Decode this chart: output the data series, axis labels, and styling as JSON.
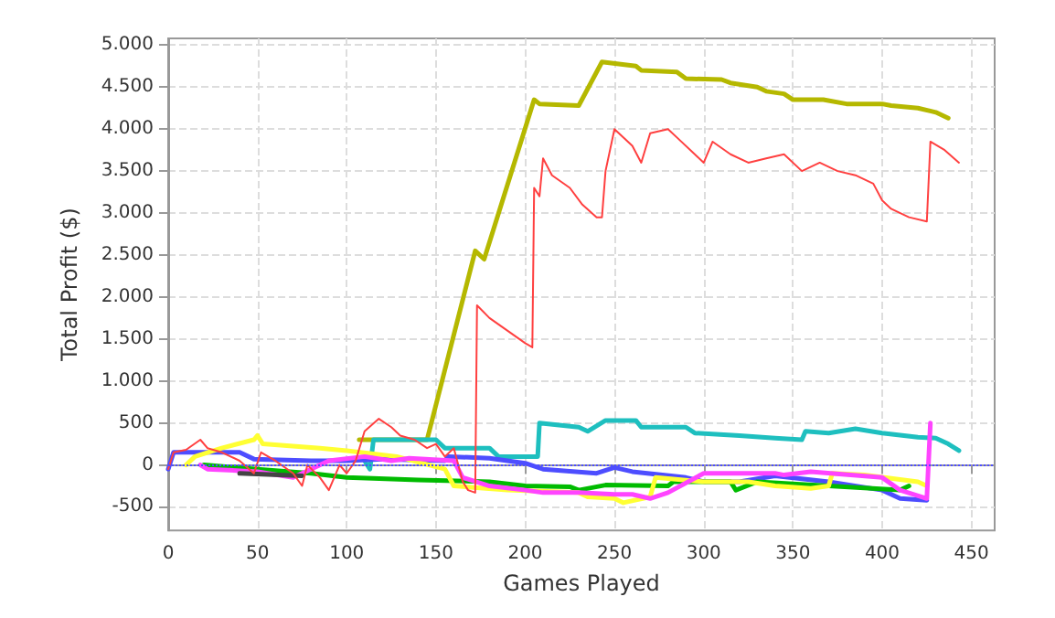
{
  "chart_data": {
    "type": "line",
    "xlabel": "Games Played",
    "ylabel": "Total Profit ($)",
    "xlim": [
      0,
      463
    ],
    "ylim": [
      -780,
      5080
    ],
    "xticks": [
      0,
      50,
      100,
      150,
      200,
      250,
      300,
      350,
      400,
      450
    ],
    "yticks": [
      {
        "value": -500,
        "label": "-500"
      },
      0,
      500,
      {
        "value": 1000,
        "label": "1.000"
      },
      {
        "value": 1500,
        "label": "1.500"
      },
      {
        "value": 2000,
        "label": "2.000"
      },
      {
        "value": 2500,
        "label": "2.500"
      },
      {
        "value": 3000,
        "label": "3.000"
      },
      {
        "value": 3500,
        "label": "3.500"
      },
      {
        "value": 4000,
        "label": "4.000"
      },
      {
        "value": 4500,
        "label": "4.500"
      },
      {
        "value": 5000,
        "label": "5.000"
      }
    ],
    "grid": true,
    "marker": "none",
    "line_style": "solid",
    "ref_lines": [
      {
        "axis": "y",
        "value": 0,
        "color": "#4d4dff",
        "line_style": "dotted"
      }
    ],
    "series": [
      {
        "color": "#b5b800",
        "x": [
          107,
          145,
          172,
          177,
          205,
          208,
          230,
          243,
          262,
          265,
          285,
          290,
          310,
          315,
          330,
          335,
          345,
          350,
          367,
          380,
          400,
          405,
          420,
          430,
          437
        ],
        "values": [
          300,
          300,
          2550,
          2450,
          4350,
          4300,
          4280,
          4800,
          4750,
          4700,
          4680,
          4600,
          4590,
          4550,
          4500,
          4450,
          4420,
          4350,
          4350,
          4300,
          4300,
          4280,
          4250,
          4200,
          4130
        ]
      },
      {
        "color": "#ff4040",
        "x": [
          0,
          3,
          10,
          18,
          22,
          30,
          40,
          48,
          52,
          60,
          70,
          75,
          78,
          85,
          90,
          96,
          100,
          105,
          110,
          118,
          125,
          130,
          138,
          145,
          150,
          155,
          160,
          165,
          168,
          172,
          173,
          180,
          190,
          200,
          204,
          205,
          208,
          210,
          215,
          225,
          232,
          240,
          243,
          245,
          250,
          260,
          265,
          270,
          280,
          285,
          295,
          300,
          305,
          315,
          325,
          335,
          345,
          355,
          365,
          375,
          385,
          395,
          400,
          405,
          415,
          425,
          427,
          435,
          443
        ],
        "values": [
          -50,
          150,
          180,
          300,
          200,
          150,
          50,
          -100,
          150,
          50,
          -100,
          -250,
          0,
          -150,
          -300,
          0,
          -100,
          50,
          400,
          550,
          450,
          350,
          300,
          200,
          250,
          100,
          200,
          -200,
          -300,
          -330,
          1900,
          1750,
          1600,
          1450,
          1400,
          3300,
          3200,
          3650,
          3450,
          3300,
          3100,
          2950,
          2950,
          3500,
          4000,
          3800,
          3600,
          3950,
          4000,
          3900,
          3700,
          3600,
          3850,
          3700,
          3600,
          3650,
          3700,
          3500,
          3600,
          3500,
          3450,
          3350,
          3150,
          3050,
          2950,
          2900,
          3850,
          3750,
          3600
        ]
      },
      {
        "color": "#1ebfbf",
        "x": [
          110,
          113,
          115,
          150,
          155,
          180,
          185,
          207,
          208,
          230,
          235,
          245,
          262,
          265,
          290,
          295,
          320,
          340,
          355,
          357,
          370,
          385,
          400,
          420,
          430,
          437,
          443
        ],
        "values": [
          50,
          -50,
          300,
          300,
          200,
          200,
          100,
          100,
          500,
          450,
          400,
          530,
          530,
          450,
          450,
          380,
          350,
          320,
          300,
          400,
          380,
          430,
          380,
          330,
          320,
          250,
          170
        ]
      },
      {
        "color": "#4d4dff",
        "x": [
          0,
          3,
          7,
          40,
          48,
          80,
          100,
          120,
          155,
          157,
          180,
          200,
          210,
          240,
          250,
          260,
          290,
          300,
          320,
          340,
          370,
          400,
          410,
          425
        ],
        "values": [
          -50,
          150,
          150,
          150,
          70,
          50,
          50,
          70,
          50,
          100,
          80,
          20,
          -50,
          -100,
          -30,
          -80,
          -150,
          -200,
          -200,
          -130,
          -200,
          -300,
          -400,
          -420
        ]
      },
      {
        "color": "#00bb00",
        "x": [
          20,
          50,
          80,
          100,
          140,
          180,
          200,
          225,
          230,
          245,
          280,
          283,
          315,
          318,
          330,
          370,
          410,
          415
        ],
        "values": [
          0,
          -50,
          -100,
          -150,
          -180,
          -200,
          -250,
          -260,
          -300,
          -240,
          -250,
          -200,
          -200,
          -300,
          -200,
          -250,
          -300,
          -250
        ]
      },
      {
        "color": "#ffff33",
        "x": [
          10,
          15,
          30,
          48,
          50,
          53,
          85,
          100,
          128,
          155,
          160,
          190,
          230,
          235,
          250,
          255,
          270,
          273,
          300,
          325,
          340,
          360,
          370,
          372,
          390,
          420,
          425
        ],
        "values": [
          0,
          100,
          200,
          300,
          350,
          250,
          200,
          170,
          100,
          -50,
          -250,
          -300,
          -330,
          -380,
          -400,
          -450,
          -380,
          -150,
          -200,
          -200,
          -250,
          -280,
          -250,
          -100,
          -120,
          -200,
          -250
        ]
      },
      {
        "color": "#ff44ff",
        "x": [
          18,
          22,
          50,
          70,
          80,
          90,
          110,
          125,
          135,
          160,
          165,
          180,
          200,
          210,
          230,
          250,
          260,
          270,
          280,
          300,
          340,
          345,
          360,
          400,
          410,
          425,
          427
        ],
        "values": [
          0,
          -50,
          -80,
          -150,
          -50,
          50,
          100,
          50,
          80,
          50,
          -150,
          -250,
          -300,
          -330,
          -330,
          -350,
          -350,
          -400,
          -330,
          -100,
          -100,
          -120,
          -80,
          -150,
          -300,
          -400,
          500
        ]
      },
      {
        "color": "#444444",
        "x": [
          40,
          75
        ],
        "values": [
          -100,
          -130
        ]
      }
    ]
  }
}
